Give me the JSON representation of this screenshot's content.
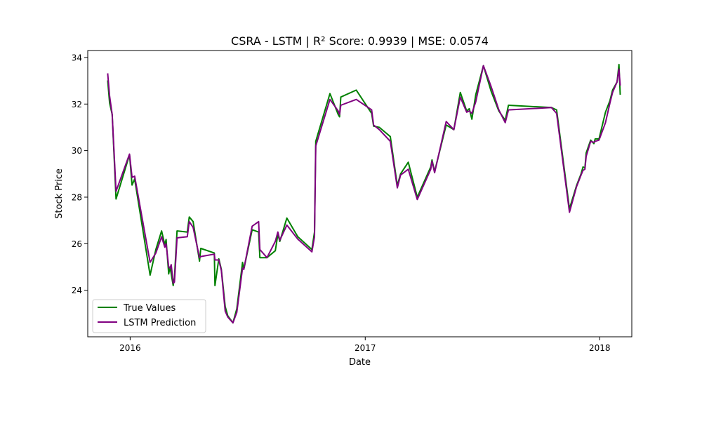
{
  "chart_data": {
    "type": "line",
    "title": "CSRA - LSTM | R² Score: 0.9939 | MSE: 0.0574",
    "xlabel": "Date",
    "ylabel": "Stock Price",
    "xlim": [
      "2015-10-27",
      "2018-02-20"
    ],
    "ylim": [
      22.0,
      34.3
    ],
    "x_ticks": [
      {
        "date": "2016-01-01",
        "label": "2016"
      },
      {
        "date": "2017-01-01",
        "label": "2017"
      },
      {
        "date": "2018-01-01",
        "label": "2018"
      }
    ],
    "y_ticks": [
      24,
      26,
      28,
      30,
      32,
      34
    ],
    "grid": false,
    "legend_position": "lower-left",
    "series": [
      {
        "name": "True Values",
        "color": "#008000",
        "points": [
          [
            "2015-11-27",
            33.02
          ],
          [
            "2015-11-30",
            32.05
          ],
          [
            "2015-12-04",
            31.55
          ],
          [
            "2015-12-10",
            27.92
          ],
          [
            "2015-12-31",
            29.82
          ],
          [
            "2016-01-04",
            28.52
          ],
          [
            "2016-01-08",
            28.78
          ],
          [
            "2016-02-01",
            24.65
          ],
          [
            "2016-02-10",
            25.75
          ],
          [
            "2016-02-19",
            26.55
          ],
          [
            "2016-02-24",
            25.95
          ],
          [
            "2016-02-26",
            26.18
          ],
          [
            "2016-03-01",
            24.7
          ],
          [
            "2016-03-03",
            25.0
          ],
          [
            "2016-03-05",
            24.7
          ],
          [
            "2016-03-08",
            24.2
          ],
          [
            "2016-03-10",
            24.55
          ],
          [
            "2016-03-14",
            26.55
          ],
          [
            "2016-03-30",
            26.5
          ],
          [
            "2016-04-02",
            27.15
          ],
          [
            "2016-04-08",
            26.95
          ],
          [
            "2016-04-18",
            25.25
          ],
          [
            "2016-04-20",
            25.8
          ],
          [
            "2016-05-11",
            25.6
          ],
          [
            "2016-05-12",
            24.2
          ],
          [
            "2016-05-18",
            25.35
          ],
          [
            "2016-05-22",
            24.9
          ],
          [
            "2016-05-28",
            23.3
          ],
          [
            "2016-06-01",
            22.9
          ],
          [
            "2016-06-09",
            22.6
          ],
          [
            "2016-06-15",
            23.2
          ],
          [
            "2016-06-24",
            25.2
          ],
          [
            "2016-06-26",
            24.9
          ],
          [
            "2016-07-09",
            26.6
          ],
          [
            "2016-07-19",
            26.5
          ],
          [
            "2016-07-21",
            25.4
          ],
          [
            "2016-08-01",
            25.4
          ],
          [
            "2016-08-14",
            25.7
          ],
          [
            "2016-08-18",
            26.4
          ],
          [
            "2016-08-21",
            26.1
          ],
          [
            "2016-09-01",
            27.1
          ],
          [
            "2016-09-18",
            26.3
          ],
          [
            "2016-10-10",
            25.75
          ],
          [
            "2016-10-14",
            26.5
          ],
          [
            "2016-10-16",
            30.4
          ],
          [
            "2016-11-07",
            32.45
          ],
          [
            "2016-11-20",
            31.55
          ],
          [
            "2016-11-22",
            31.45
          ],
          [
            "2016-11-24",
            32.3
          ],
          [
            "2016-12-18",
            32.6
          ],
          [
            "2017-01-11",
            31.6
          ],
          [
            "2017-01-14",
            31.05
          ],
          [
            "2017-01-23",
            31.0
          ],
          [
            "2017-02-09",
            30.6
          ],
          [
            "2017-02-20",
            28.5
          ],
          [
            "2017-02-25",
            29.0
          ],
          [
            "2017-03-09",
            29.5
          ],
          [
            "2017-03-23",
            28.0
          ],
          [
            "2017-04-13",
            29.3
          ],
          [
            "2017-04-15",
            29.6
          ],
          [
            "2017-04-19",
            29.1
          ],
          [
            "2017-05-07",
            31.1
          ],
          [
            "2017-05-19",
            30.9
          ],
          [
            "2017-05-29",
            32.5
          ],
          [
            "2017-06-08",
            31.7
          ],
          [
            "2017-06-12",
            31.8
          ],
          [
            "2017-06-16",
            31.35
          ],
          [
            "2017-06-22",
            32.4
          ],
          [
            "2017-07-04",
            33.65
          ],
          [
            "2017-07-16",
            32.55
          ],
          [
            "2017-07-28",
            31.7
          ],
          [
            "2017-08-07",
            31.3
          ],
          [
            "2017-08-12",
            31.95
          ],
          [
            "2017-10-18",
            31.85
          ],
          [
            "2017-10-26",
            31.75
          ],
          [
            "2017-11-15",
            27.5
          ],
          [
            "2017-11-26",
            28.5
          ],
          [
            "2017-12-03",
            29.0
          ],
          [
            "2017-12-06",
            29.3
          ],
          [
            "2017-12-09",
            29.25
          ],
          [
            "2017-12-11",
            29.9
          ],
          [
            "2017-12-18",
            30.45
          ],
          [
            "2017-12-23",
            30.3
          ],
          [
            "2017-12-25",
            30.5
          ],
          [
            "2017-12-31",
            30.5
          ],
          [
            "2018-01-10",
            31.65
          ],
          [
            "2018-01-17",
            32.15
          ],
          [
            "2018-01-21",
            32.6
          ],
          [
            "2018-01-28",
            32.95
          ],
          [
            "2018-01-31",
            33.7
          ],
          [
            "2018-02-02",
            32.4
          ]
        ]
      },
      {
        "name": "LSTM Prediction",
        "color": "#800080",
        "points": [
          [
            "2015-11-27",
            33.32
          ],
          [
            "2015-11-30",
            32.35
          ],
          [
            "2015-12-04",
            31.55
          ],
          [
            "2015-12-10",
            28.25
          ],
          [
            "2015-12-31",
            29.85
          ],
          [
            "2016-01-04",
            28.85
          ],
          [
            "2016-01-08",
            28.9
          ],
          [
            "2016-02-01",
            25.2
          ],
          [
            "2016-02-10",
            25.6
          ],
          [
            "2016-02-19",
            26.3
          ],
          [
            "2016-02-24",
            25.85
          ],
          [
            "2016-02-26",
            26.0
          ],
          [
            "2016-03-01",
            25.0
          ],
          [
            "2016-03-03",
            24.95
          ],
          [
            "2016-03-05",
            25.1
          ],
          [
            "2016-03-08",
            24.3
          ],
          [
            "2016-03-10",
            24.35
          ],
          [
            "2016-03-14",
            26.25
          ],
          [
            "2016-03-30",
            26.3
          ],
          [
            "2016-04-02",
            26.95
          ],
          [
            "2016-04-08",
            26.7
          ],
          [
            "2016-04-18",
            25.4
          ],
          [
            "2016-04-20",
            25.45
          ],
          [
            "2016-05-11",
            25.55
          ],
          [
            "2016-05-12",
            25.3
          ],
          [
            "2016-05-18",
            25.3
          ],
          [
            "2016-05-22",
            24.85
          ],
          [
            "2016-05-28",
            23.1
          ],
          [
            "2016-06-01",
            22.85
          ],
          [
            "2016-06-09",
            22.6
          ],
          [
            "2016-06-15",
            23.05
          ],
          [
            "2016-06-24",
            24.95
          ],
          [
            "2016-06-26",
            24.9
          ],
          [
            "2016-07-09",
            26.75
          ],
          [
            "2016-07-19",
            26.95
          ],
          [
            "2016-07-21",
            25.75
          ],
          [
            "2016-08-01",
            25.4
          ],
          [
            "2016-08-14",
            26.1
          ],
          [
            "2016-08-18",
            26.5
          ],
          [
            "2016-08-21",
            26.15
          ],
          [
            "2016-09-01",
            26.8
          ],
          [
            "2016-09-18",
            26.2
          ],
          [
            "2016-10-10",
            25.65
          ],
          [
            "2016-10-14",
            26.3
          ],
          [
            "2016-10-16",
            30.2
          ],
          [
            "2016-11-07",
            32.2
          ],
          [
            "2016-11-20",
            31.7
          ],
          [
            "2016-11-22",
            31.55
          ],
          [
            "2016-11-24",
            31.95
          ],
          [
            "2016-12-18",
            32.2
          ],
          [
            "2017-01-11",
            31.75
          ],
          [
            "2017-01-14",
            31.1
          ],
          [
            "2017-01-23",
            30.9
          ],
          [
            "2017-02-09",
            30.4
          ],
          [
            "2017-02-20",
            28.4
          ],
          [
            "2017-02-25",
            28.95
          ],
          [
            "2017-03-09",
            29.2
          ],
          [
            "2017-03-23",
            27.9
          ],
          [
            "2017-04-13",
            29.2
          ],
          [
            "2017-04-15",
            29.55
          ],
          [
            "2017-04-19",
            29.05
          ],
          [
            "2017-05-07",
            31.25
          ],
          [
            "2017-05-19",
            30.9
          ],
          [
            "2017-05-29",
            32.3
          ],
          [
            "2017-06-08",
            31.65
          ],
          [
            "2017-06-12",
            31.7
          ],
          [
            "2017-06-16",
            31.6
          ],
          [
            "2017-06-22",
            32.1
          ],
          [
            "2017-07-04",
            33.65
          ],
          [
            "2017-07-16",
            32.75
          ],
          [
            "2017-07-28",
            31.75
          ],
          [
            "2017-08-07",
            31.2
          ],
          [
            "2017-08-12",
            31.75
          ],
          [
            "2017-10-18",
            31.85
          ],
          [
            "2017-10-26",
            31.6
          ],
          [
            "2017-11-15",
            27.35
          ],
          [
            "2017-11-26",
            28.45
          ],
          [
            "2017-12-03",
            28.95
          ],
          [
            "2017-12-06",
            29.15
          ],
          [
            "2017-12-09",
            29.2
          ],
          [
            "2017-12-11",
            29.75
          ],
          [
            "2017-12-18",
            30.4
          ],
          [
            "2017-12-23",
            30.35
          ],
          [
            "2017-12-25",
            30.4
          ],
          [
            "2017-12-31",
            30.45
          ],
          [
            "2018-01-10",
            31.2
          ],
          [
            "2018-01-17",
            32.05
          ],
          [
            "2018-01-21",
            32.5
          ],
          [
            "2018-01-28",
            32.95
          ],
          [
            "2018-01-31",
            33.5
          ],
          [
            "2018-02-02",
            32.8
          ]
        ]
      }
    ]
  }
}
